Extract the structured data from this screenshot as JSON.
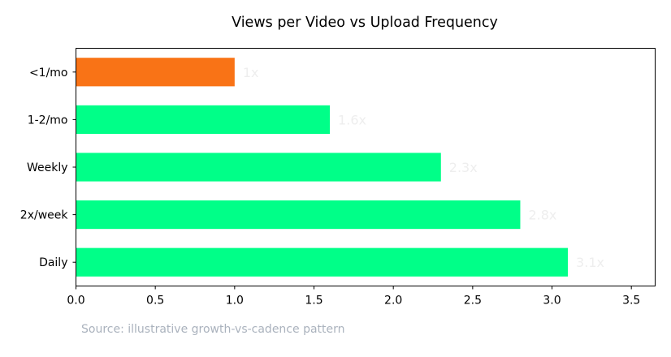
{
  "chart_data": {
    "type": "bar",
    "orientation": "horizontal",
    "title": "Views per Video vs Upload Frequency",
    "xlabel": "",
    "ylabel": "",
    "xlim": [
      0,
      3.65
    ],
    "xticks": [
      "0.0",
      "0.5",
      "1.0",
      "1.5",
      "2.0",
      "2.5",
      "3.0",
      "3.5"
    ],
    "grid": false,
    "categories": [
      "<1/mo",
      "1-2/mo",
      "Weekly",
      "2x/week",
      "Daily"
    ],
    "values": [
      1.0,
      1.6,
      2.3,
      2.8,
      3.1
    ],
    "data_labels": [
      "1x",
      "1.6x",
      "2.3x",
      "2.8x",
      "3.1x"
    ],
    "colors": {
      "highlight": "#f97316",
      "default": "#00ff88",
      "data_label": "#eeeeee",
      "axis": "#000000"
    },
    "highlight_index": 0
  },
  "source_note": "Source: illustrative growth-vs-cadence pattern"
}
